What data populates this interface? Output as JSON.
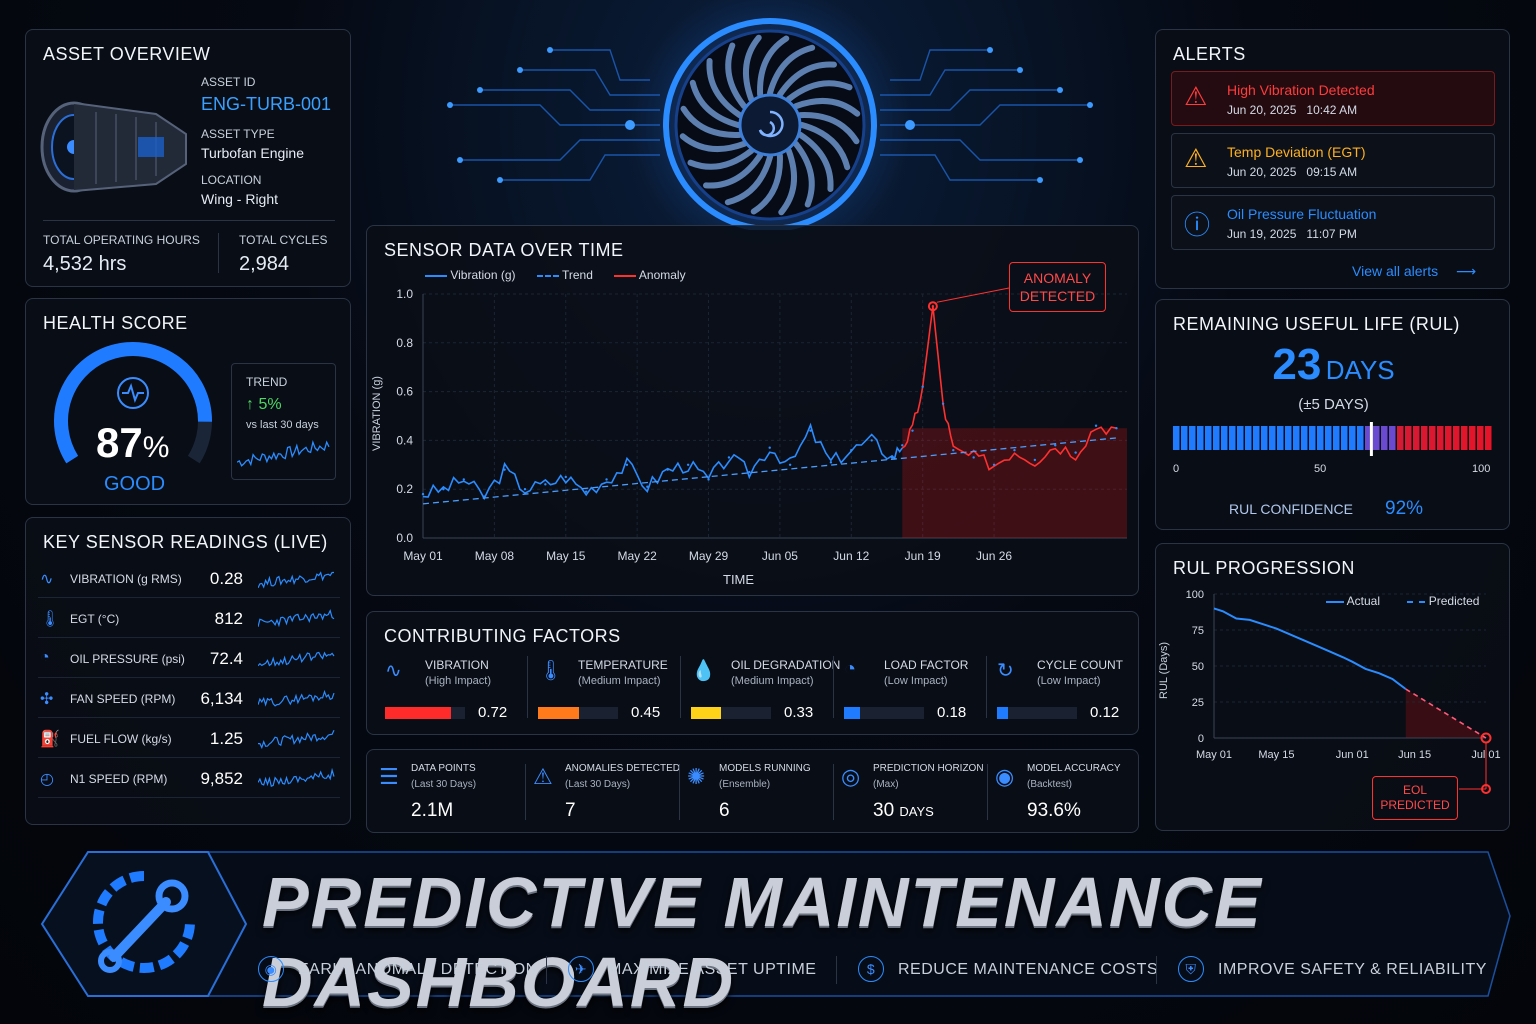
{
  "asset_overview": {
    "title": "ASSET OVERVIEW",
    "asset_id_label": "ASSET ID",
    "asset_id": "ENG-TURB-001",
    "asset_type_label": "ASSET TYPE",
    "asset_type": "Turbofan Engine",
    "location_label": "LOCATION",
    "location": "Wing - Right",
    "hours_label": "TOTAL OPERATING HOURS",
    "hours": "4,532 hrs",
    "cycles_label": "TOTAL CYCLES",
    "cycles": "2,984"
  },
  "health": {
    "title": "HEALTH SCORE",
    "score": "87",
    "unit": "%",
    "score_fraction": 0.87,
    "status": "GOOD",
    "trend_label": "TREND",
    "trend_value": "5%",
    "trend_note": "vs last 30 days"
  },
  "sensors": {
    "title": "KEY SENSOR READINGS (LIVE)",
    "items": [
      {
        "name": "VIBRATION (g RMS)",
        "value": "0.28",
        "icon": "wave-icon"
      },
      {
        "name": "EGT (°C)",
        "value": "812",
        "icon": "thermometer-icon"
      },
      {
        "name": "OIL PRESSURE (psi)",
        "value": "72.4",
        "icon": "gauge-icon"
      },
      {
        "name": "FAN SPEED (RPM)",
        "value": "6,134",
        "icon": "fan-icon"
      },
      {
        "name": "FUEL FLOW (kg/s)",
        "value": "1.25",
        "icon": "fuel-icon"
      },
      {
        "name": "N1 SPEED (RPM)",
        "value": "9,852",
        "icon": "speedometer-icon"
      }
    ]
  },
  "sensor_chart": {
    "title": "SENSOR DATA OVER TIME",
    "legend": [
      "Vibration (g)",
      "Trend",
      "Anomaly"
    ],
    "anomaly_label_1": "ANOMALY",
    "anomaly_label_2": "DETECTED",
    "ylabel": "VIBRATION (g)",
    "xlabel": "TIME"
  },
  "chart_data": [
    {
      "type": "line",
      "title": "SENSOR DATA OVER TIME",
      "xlabel": "TIME",
      "ylabel": "VIBRATION (g)",
      "ylim": [
        0,
        1.0
      ],
      "y_ticks": [
        "0.0",
        "0.2",
        "0.4",
        "0.6",
        "0.8",
        "1.0"
      ],
      "x_ticks": [
        "May 01",
        "May 08",
        "May 15",
        "May 22",
        "May 29",
        "Jun 05",
        "Jun 12",
        "Jun 19",
        "Jun 26"
      ],
      "grid": true,
      "legend_position": "top-left",
      "series": [
        {
          "name": "Vibration (g)",
          "days": [
            0,
            2,
            4,
            6,
            8,
            10,
            12,
            14,
            16,
            18,
            20,
            22,
            24,
            26,
            28,
            30,
            32,
            34,
            36,
            38,
            40,
            42,
            44,
            46,
            47,
            48,
            49,
            50,
            51,
            52,
            54,
            56,
            58,
            60,
            62,
            64,
            66,
            68
          ],
          "values": [
            0.18,
            0.2,
            0.24,
            0.17,
            0.28,
            0.2,
            0.22,
            0.25,
            0.19,
            0.24,
            0.3,
            0.21,
            0.28,
            0.3,
            0.24,
            0.33,
            0.27,
            0.37,
            0.3,
            0.44,
            0.31,
            0.36,
            0.4,
            0.33,
            0.38,
            0.44,
            0.62,
            0.95,
            0.55,
            0.36,
            0.33,
            0.3,
            0.36,
            0.32,
            0.38,
            0.35,
            0.46,
            0.45
          ]
        },
        {
          "name": "Trend",
          "days": [
            0,
            68
          ],
          "values": [
            0.14,
            0.41
          ]
        },
        {
          "name": "Anomaly",
          "days": [
            47,
            48,
            49,
            50,
            51,
            52,
            54,
            56,
            58,
            60,
            62,
            64,
            66,
            68
          ],
          "values": [
            0.38,
            0.44,
            0.62,
            0.95,
            0.55,
            0.36,
            0.33,
            0.3,
            0.36,
            0.32,
            0.38,
            0.35,
            0.46,
            0.45
          ]
        }
      ]
    },
    {
      "type": "line",
      "title": "RUL PROGRESSION",
      "ylabel": "RUL (Days)",
      "ylim": [
        0,
        100
      ],
      "y_ticks": [
        "0",
        "25",
        "50",
        "75",
        "100"
      ],
      "x_ticks": [
        "May 01",
        "May 15",
        "Jun 01",
        "Jun 15",
        "Jul 01"
      ],
      "legend_position": "top-right",
      "series": [
        {
          "name": "Actual",
          "days": [
            0,
            2,
            5,
            8,
            11,
            14,
            17,
            20,
            23,
            26,
            29,
            31,
            34,
            37,
            40,
            43
          ],
          "values": [
            90,
            88,
            83,
            82,
            79,
            76,
            72,
            68,
            64,
            60,
            56,
            53,
            48,
            45,
            41,
            34
          ]
        },
        {
          "name": "Predicted",
          "days": [
            43,
            61
          ],
          "values": [
            34,
            0
          ]
        }
      ]
    }
  ],
  "factors": {
    "title": "CONTRIBUTING FACTORS",
    "items": [
      {
        "name": "VIBRATION",
        "impact": "(High Impact)",
        "value": "0.72",
        "level": 0.72,
        "color": "#ff2a2a",
        "icon": "wave-icon"
      },
      {
        "name": "TEMPERATURE",
        "impact": "(Medium Impact)",
        "value": "0.45",
        "level": 0.45,
        "color": "#ff7a1a",
        "icon": "thermometer-icon"
      },
      {
        "name": "OIL DEGRADATION",
        "impact": "(Medium Impact)",
        "value": "0.33",
        "level": 0.33,
        "color": "#ffd21a",
        "icon": "droplet-icon"
      },
      {
        "name": "LOAD FACTOR",
        "impact": "(Low Impact)",
        "value": "0.18",
        "level": 0.18,
        "color": "#1f7bff",
        "icon": "gauge-icon"
      },
      {
        "name": "CYCLE COUNT",
        "impact": "(Low Impact)",
        "value": "0.12",
        "level": 0.12,
        "color": "#1f7bff",
        "icon": "cycle-icon"
      }
    ]
  },
  "stats": [
    {
      "label": "DATA POINTS",
      "sub": "(Last 30 Days)",
      "value": "2.1M",
      "unit": "",
      "icon": "database-icon"
    },
    {
      "label": "ANOMALIES DETECTED",
      "sub": "(Last 30 Days)",
      "value": "7",
      "unit": "",
      "icon": "warning-icon"
    },
    {
      "label": "MODELS RUNNING",
      "sub": "(Ensemble)",
      "value": "6",
      "unit": "",
      "icon": "brain-icon"
    },
    {
      "label": "PREDICTION HORIZON",
      "sub": "(Max)",
      "value": "30",
      "unit": "DAYS",
      "icon": "target-icon"
    },
    {
      "label": "MODEL ACCURACY",
      "sub": "(Backtest)",
      "value": "93.6%",
      "unit": "",
      "icon": "accuracy-icon"
    }
  ],
  "alerts": {
    "title": "ALERTS",
    "items": [
      {
        "title": "High Vibration Detected",
        "date": "Jun 20, 2025",
        "time": "10:42 AM",
        "color": "#ff3b3b",
        "icon": "warning-icon"
      },
      {
        "title": "Temp Deviation (EGT)",
        "date": "Jun 20, 2025",
        "time": "09:15 AM",
        "color": "#ffb020",
        "icon": "warning-icon"
      },
      {
        "title": "Oil Pressure Fluctuation",
        "date": "Jun 19, 2025",
        "time": "11:07 PM",
        "color": "#2b8cff",
        "icon": "info-icon"
      }
    ],
    "view_all": "View all alerts"
  },
  "rul": {
    "title": "REMAINING USEFUL LIFE (RUL)",
    "value": "23",
    "unit": "DAYS",
    "range": "(±5 DAYS)",
    "marker_fraction": 0.62,
    "scale": [
      "0",
      "50",
      "100"
    ],
    "confidence_label": "RUL CONFIDENCE",
    "confidence": "92%"
  },
  "rul_progress": {
    "title": "RUL PROGRESSION",
    "legend": [
      "Actual",
      "Predicted"
    ],
    "ylabel": "RUL (Days)",
    "eol_1": "EOL",
    "eol_2": "PREDICTED"
  },
  "banner": {
    "title": "PREDICTIVE MAINTENANCE DASHBOARD",
    "features": [
      {
        "label": "EARLY ANOMALY DETECTION",
        "icon": "radar-icon"
      },
      {
        "label": "MAXIMIZE ASSET UPTIME",
        "icon": "plane-icon"
      },
      {
        "label": "REDUCE MAINTENANCE COSTS",
        "icon": "dollar-icon"
      },
      {
        "label": "IMPROVE SAFETY & RELIABILITY",
        "icon": "shield-icon"
      }
    ]
  }
}
